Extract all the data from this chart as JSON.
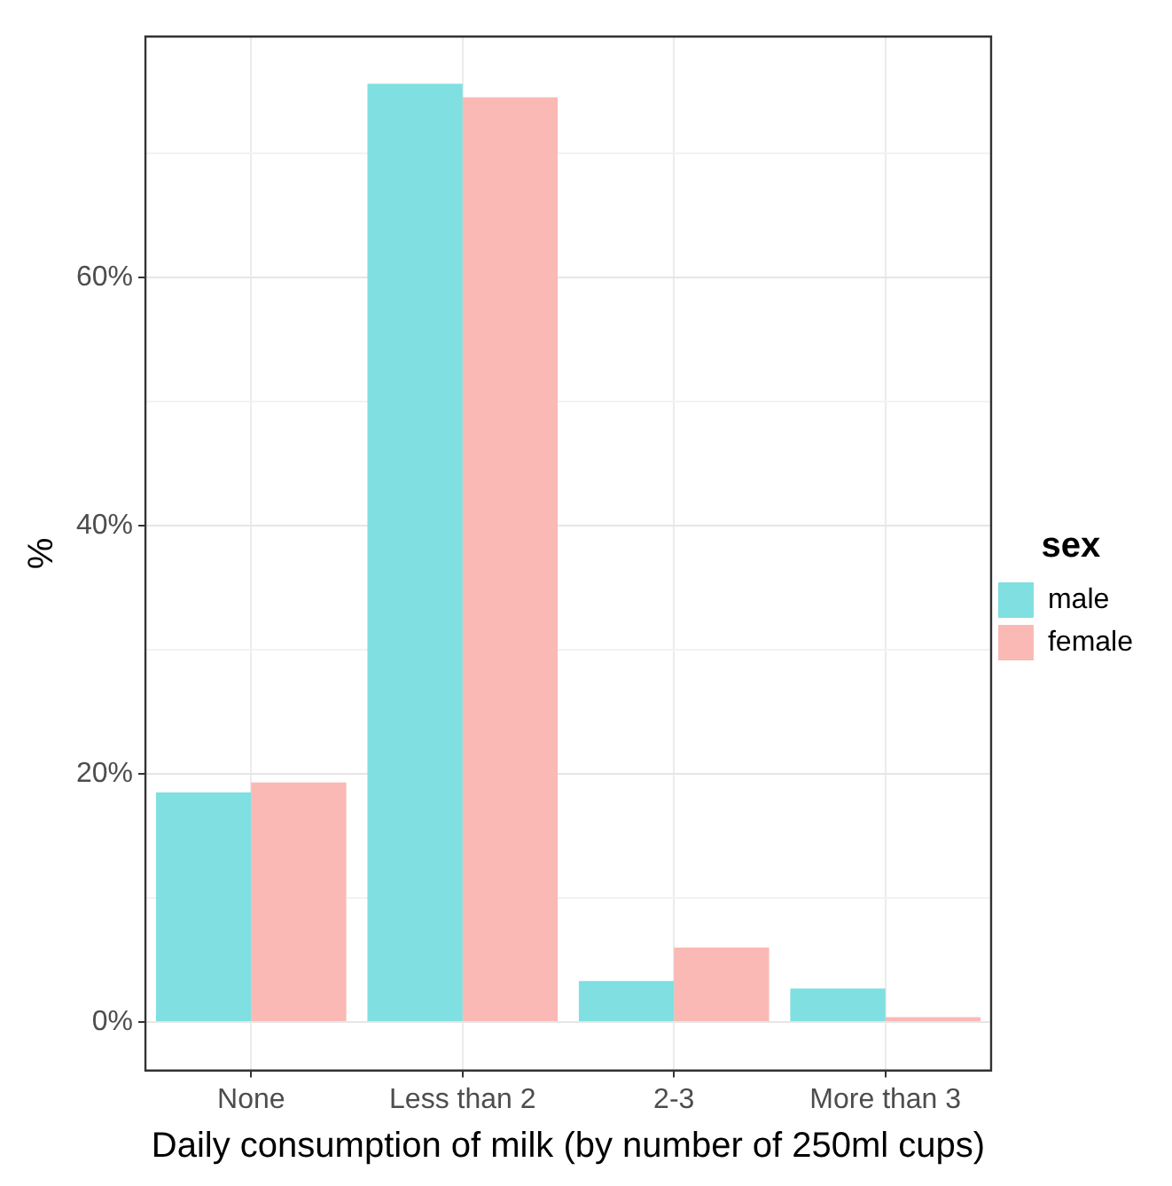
{
  "chart_data": {
    "type": "bar",
    "xlabel": "Daily consumption of milk (by number of 250ml cups)",
    "ylabel": "%",
    "legend_title": "sex",
    "categories": [
      "None",
      "Less than 2",
      "2-3",
      "More than 3"
    ],
    "series": [
      {
        "name": "male",
        "color": "#7fdfe1",
        "values": [
          18.5,
          75.6,
          3.3,
          2.7
        ]
      },
      {
        "name": "female",
        "color": "#fab9b5",
        "values": [
          19.3,
          74.5,
          6.0,
          0.4
        ]
      }
    ],
    "ylim": [
      -3.9,
      79.4
    ],
    "yticks": [
      {
        "value": 0,
        "label": "0%"
      },
      {
        "value": 10,
        "label": null
      },
      {
        "value": 20,
        "label": "20%"
      },
      {
        "value": 30,
        "label": null
      },
      {
        "value": 40,
        "label": "40%"
      },
      {
        "value": 50,
        "label": null
      },
      {
        "value": 60,
        "label": "60%"
      },
      {
        "value": 70,
        "label": null
      }
    ],
    "grid": true,
    "legend": "right"
  }
}
